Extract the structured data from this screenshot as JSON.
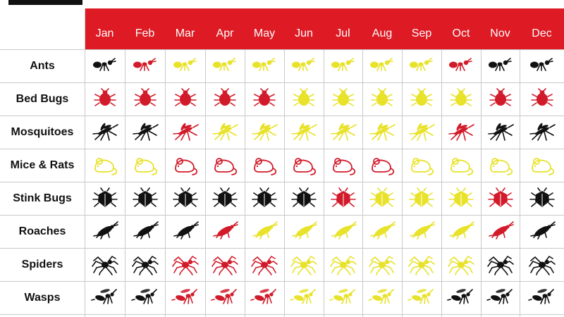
{
  "chart_data": {
    "type": "table",
    "title": "",
    "months": [
      "Jan",
      "Feb",
      "Mar",
      "Apr",
      "May",
      "Jun",
      "Jul",
      "Aug",
      "Sep",
      "Oct",
      "Nov",
      "Dec"
    ],
    "legend_colors": {
      "black": "#111111",
      "red": "#d21b2a",
      "yellow": "#e8e22a"
    },
    "rows": [
      {
        "name": "Ants",
        "icon": "ant-icon",
        "activity": [
          "black",
          "red",
          "yellow",
          "yellow",
          "yellow",
          "yellow",
          "yellow",
          "yellow",
          "yellow",
          "red",
          "black",
          "black"
        ]
      },
      {
        "name": "Bed Bugs",
        "icon": "bedbug-icon",
        "activity": [
          "red",
          "red",
          "red",
          "red",
          "red",
          "yellow",
          "yellow",
          "yellow",
          "yellow",
          "yellow",
          "red",
          "red"
        ]
      },
      {
        "name": "Mosquitoes",
        "icon": "mosquito-icon",
        "activity": [
          "black",
          "black",
          "red",
          "yellow",
          "yellow",
          "yellow",
          "yellow",
          "yellow",
          "yellow",
          "red",
          "black",
          "black"
        ]
      },
      {
        "name": "Mice & Rats",
        "icon": "mouse-icon",
        "activity": [
          "yellow",
          "yellow",
          "red",
          "red",
          "red",
          "red",
          "red",
          "red",
          "yellow",
          "yellow",
          "yellow",
          "yellow"
        ]
      },
      {
        "name": "Stink Bugs",
        "icon": "stinkbug-icon",
        "activity": [
          "black",
          "black",
          "black",
          "black",
          "black",
          "black",
          "red",
          "yellow",
          "yellow",
          "yellow",
          "red",
          "black"
        ]
      },
      {
        "name": "Roaches",
        "icon": "roach-icon",
        "activity": [
          "black",
          "black",
          "black",
          "red",
          "yellow",
          "yellow",
          "yellow",
          "yellow",
          "yellow",
          "yellow",
          "red",
          "black"
        ]
      },
      {
        "name": "Spiders",
        "icon": "spider-icon",
        "activity": [
          "black",
          "black",
          "red",
          "red",
          "red",
          "yellow",
          "yellow",
          "yellow",
          "yellow",
          "yellow",
          "black",
          "black"
        ]
      },
      {
        "name": "Wasps",
        "icon": "wasp-icon",
        "activity": [
          "black",
          "black",
          "red",
          "red",
          "red",
          "yellow",
          "yellow",
          "yellow",
          "yellow",
          "black",
          "black",
          "black"
        ]
      }
    ]
  }
}
